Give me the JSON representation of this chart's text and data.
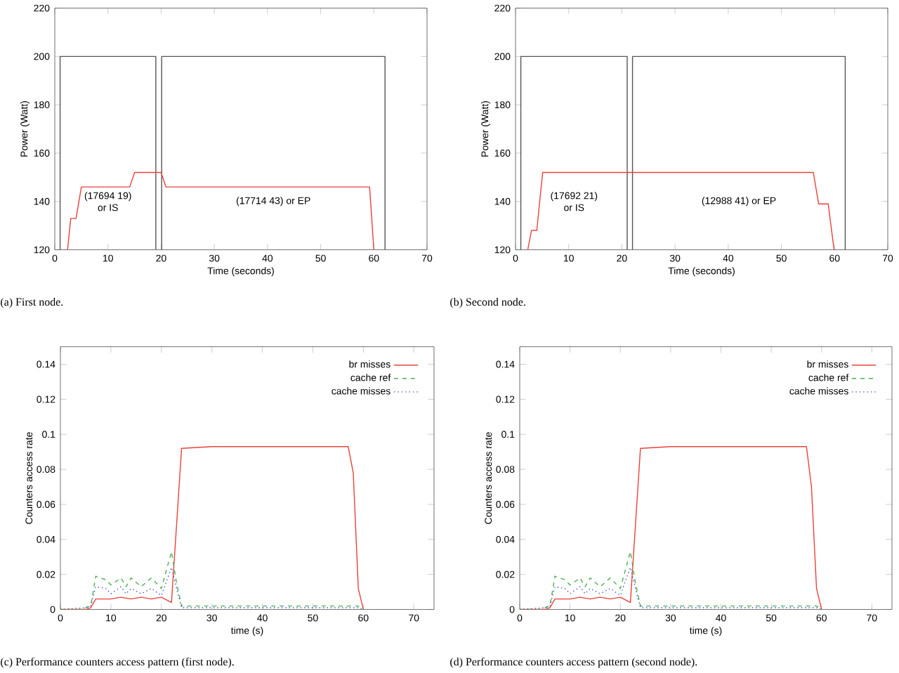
{
  "chart_data": [
    {
      "type": "line",
      "xlabel": "Time (seconds)",
      "ylabel": "Power (Watt)",
      "xlim": [
        0,
        70
      ],
      "ylim": [
        120,
        220
      ],
      "xticks": [
        0,
        10,
        20,
        30,
        40,
        50,
        60,
        70
      ],
      "yticks": [
        120,
        140,
        160,
        180,
        200,
        220
      ],
      "series": [
        {
          "color": "#555555",
          "x": [
            1,
            1,
            19,
            19
          ],
          "values": [
            120,
            200,
            200,
            120
          ]
        },
        {
          "color": "#555555",
          "x": [
            20.1,
            20.1,
            62.1,
            62.1
          ],
          "values": [
            120,
            200,
            200,
            120
          ]
        },
        {
          "color": "#e8423a",
          "x": [
            2.4,
            3.0,
            4.0,
            5.0,
            14.1,
            15.0,
            20.0,
            20.9,
            59.2,
            60.0
          ],
          "values": [
            120,
            133,
            133,
            146,
            146,
            152,
            152,
            146,
            146,
            120
          ]
        }
      ],
      "annotations": [
        "(17694 19) or IS",
        "(17714 43) or EP",
        "(a) First node."
      ]
    },
    {
      "type": "line",
      "xlabel": "Time (seconds)",
      "ylabel": "Power (Watt)",
      "xlim": [
        0,
        70
      ],
      "ylim": [
        120,
        220
      ],
      "xticks": [
        0,
        10,
        20,
        30,
        40,
        50,
        60,
        70
      ],
      "yticks": [
        120,
        140,
        160,
        180,
        200,
        220
      ],
      "series": [
        {
          "color": "#555555",
          "x": [
            1,
            1,
            21,
            21
          ],
          "values": [
            120,
            200,
            200,
            120
          ]
        },
        {
          "color": "#555555",
          "x": [
            22,
            22,
            62,
            62
          ],
          "values": [
            120,
            200,
            200,
            120
          ]
        },
        {
          "color": "#e8423a",
          "x": [
            2.3,
            3.0,
            4.0,
            5.1,
            56.0,
            57.0,
            58.8,
            59.9
          ],
          "values": [
            120,
            128,
            128,
            152,
            152,
            139,
            139,
            120
          ]
        }
      ],
      "annotations": [
        "(17692 21) or IS",
        "(12988 41) or EP",
        "(b) Second node."
      ]
    },
    {
      "type": "line",
      "xlabel": "time (s)",
      "ylabel": "Counters access rate",
      "xlim": [
        0,
        74
      ],
      "ylim": [
        0,
        0.15
      ],
      "xticks": [
        0,
        10,
        20,
        30,
        40,
        50,
        60,
        70
      ],
      "yticks": [
        0,
        0.02,
        0.04,
        0.06,
        0.08,
        0.1,
        0.12,
        0.14
      ],
      "legend": "top right",
      "series": [
        {
          "name": "br misses",
          "color": "#e8423a",
          "line_style": "solid",
          "x": [
            0,
            5,
            6,
            7,
            10,
            12,
            14,
            16,
            18,
            20,
            22,
            24,
            30,
            57,
            58,
            59,
            60
          ],
          "values": [
            0,
            0,
            0.001,
            0.006,
            0.006,
            0.007,
            0.006,
            0.007,
            0.006,
            0.007,
            0.004,
            0.092,
            0.093,
            0.093,
            0.078,
            0.012,
            0
          ]
        },
        {
          "name": "cache ref",
          "color": "#4caf50",
          "line_style": "dashed",
          "x": [
            0,
            4,
            6,
            7,
            9,
            10,
            12,
            13,
            14,
            16,
            18,
            20,
            22,
            23,
            24,
            58,
            59,
            60
          ],
          "values": [
            0,
            0,
            0.002,
            0.019,
            0.017,
            0.014,
            0.018,
            0.013,
            0.018,
            0.013,
            0.018,
            0.012,
            0.033,
            0.015,
            0.002,
            0.002,
            0.002,
            0
          ]
        },
        {
          "name": "cache misses",
          "color": "#3a4fc4",
          "line_style": "dotted",
          "x": [
            0,
            5,
            6,
            7,
            9,
            10,
            12,
            13,
            14,
            16,
            18,
            20,
            22,
            23,
            24,
            58,
            59,
            60
          ],
          "values": [
            0,
            0.001,
            0.002,
            0.013,
            0.012,
            0.009,
            0.013,
            0.009,
            0.012,
            0.009,
            0.012,
            0.008,
            0.024,
            0.012,
            0.001,
            0.001,
            0.001,
            0
          ]
        }
      ],
      "annotations": [
        "(c) Performance counters access pattern (first node)."
      ]
    },
    {
      "type": "line",
      "xlabel": "time (s)",
      "ylabel": "Counters access rate",
      "xlim": [
        0,
        74
      ],
      "ylim": [
        0,
        0.15
      ],
      "xticks": [
        0,
        10,
        20,
        30,
        40,
        50,
        60,
        70
      ],
      "yticks": [
        0,
        0.02,
        0.04,
        0.06,
        0.08,
        0.1,
        0.12,
        0.14
      ],
      "legend": "top right",
      "series": [
        {
          "name": "br misses",
          "color": "#e8423a",
          "line_style": "solid",
          "x": [
            0,
            5,
            6,
            7,
            10,
            12,
            14,
            16,
            18,
            20,
            22,
            24,
            30,
            57,
            58,
            59,
            60
          ],
          "values": [
            0,
            0,
            0.001,
            0.006,
            0.006,
            0.007,
            0.006,
            0.007,
            0.006,
            0.007,
            0.004,
            0.092,
            0.093,
            0.093,
            0.07,
            0.012,
            0
          ]
        },
        {
          "name": "cache ref",
          "color": "#4caf50",
          "line_style": "dashed",
          "x": [
            0,
            4,
            6,
            7,
            9,
            10,
            12,
            13,
            14,
            16,
            18,
            20,
            22,
            23,
            24,
            58,
            59,
            60
          ],
          "values": [
            0,
            0,
            0.002,
            0.019,
            0.017,
            0.014,
            0.018,
            0.013,
            0.018,
            0.013,
            0.018,
            0.012,
            0.033,
            0.015,
            0.002,
            0.002,
            0.002,
            0
          ]
        },
        {
          "name": "cache misses",
          "color": "#3a4fc4",
          "line_style": "dotted",
          "x": [
            0,
            5,
            6,
            7,
            9,
            10,
            12,
            13,
            14,
            16,
            18,
            20,
            22,
            23,
            24,
            58,
            59,
            60
          ],
          "values": [
            0,
            0.001,
            0.002,
            0.013,
            0.012,
            0.009,
            0.013,
            0.009,
            0.012,
            0.009,
            0.012,
            0.008,
            0.024,
            0.012,
            0.001,
            0.001,
            0.001,
            0
          ]
        }
      ],
      "annotations": [
        "(d) Performance counters access pattern (second node)."
      ]
    }
  ]
}
